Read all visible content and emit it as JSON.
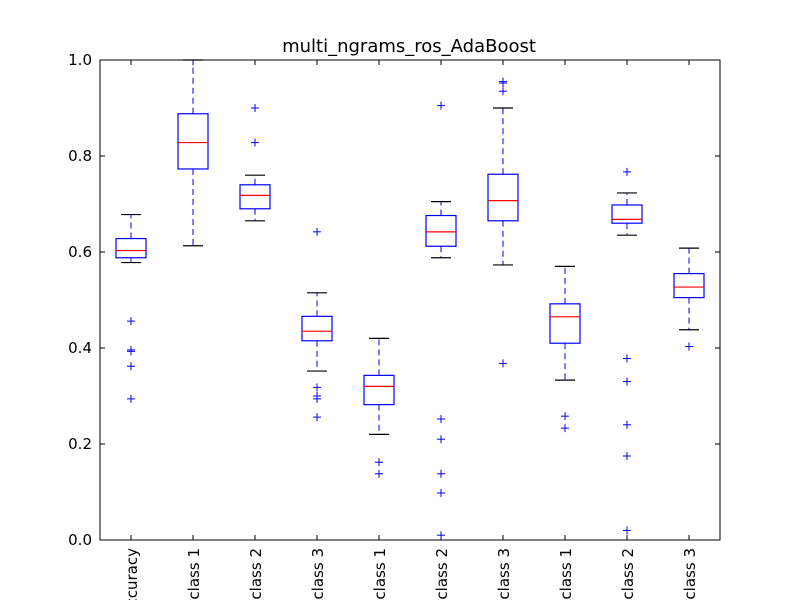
{
  "chart_data": {
    "type": "box",
    "title": "multi_ngrams_ros_AdaBoost",
    "xlabel": "",
    "ylabel": "",
    "ylim": [
      0.0,
      1.0
    ],
    "yticks": [
      0.0,
      0.2,
      0.4,
      0.6,
      0.8,
      1.0
    ],
    "ytick_labels": [
      "0.0",
      "0.2",
      "0.4",
      "0.6",
      "0.8",
      "1.0"
    ],
    "grid": false,
    "categories": [
      "ccuracy",
      "class 1",
      "class 2",
      "class 3",
      "class 1",
      "class 2",
      "class 3",
      "class 1",
      "class 2",
      "class 3"
    ],
    "boxes": [
      {
        "whislo": 0.578,
        "q1": 0.588,
        "med": 0.603,
        "q3": 0.628,
        "whishi": 0.678,
        "fliers": [
          0.456,
          0.396,
          0.393,
          0.362,
          0.294
        ]
      },
      {
        "whislo": 0.613,
        "q1": 0.773,
        "med": 0.828,
        "q3": 0.888,
        "whishi": 1.0,
        "fliers": []
      },
      {
        "whislo": 0.665,
        "q1": 0.69,
        "med": 0.718,
        "q3": 0.74,
        "whishi": 0.76,
        "fliers": [
          0.9,
          0.828
        ]
      },
      {
        "whislo": 0.352,
        "q1": 0.415,
        "med": 0.435,
        "q3": 0.466,
        "whishi": 0.515,
        "fliers": [
          0.642,
          0.318,
          0.3,
          0.294,
          0.256
        ]
      },
      {
        "whislo": 0.22,
        "q1": 0.282,
        "med": 0.32,
        "q3": 0.343,
        "whishi": 0.42,
        "fliers": [
          0.162,
          0.138
        ]
      },
      {
        "whislo": 0.588,
        "q1": 0.612,
        "med": 0.642,
        "q3": 0.676,
        "whishi": 0.705,
        "fliers": [
          0.905,
          0.252,
          0.21,
          0.138,
          0.098,
          0.01
        ]
      },
      {
        "whislo": 0.573,
        "q1": 0.665,
        "med": 0.707,
        "q3": 0.762,
        "whishi": 0.9,
        "fliers": [
          0.955,
          0.952,
          0.935,
          0.368
        ]
      },
      {
        "whislo": 0.333,
        "q1": 0.41,
        "med": 0.465,
        "q3": 0.492,
        "whishi": 0.57,
        "fliers": [
          0.258,
          0.233
        ]
      },
      {
        "whislo": 0.635,
        "q1": 0.66,
        "med": 0.668,
        "q3": 0.698,
        "whishi": 0.723,
        "fliers": [
          0.767,
          0.378,
          0.33,
          0.24,
          0.175,
          0.02
        ]
      },
      {
        "whislo": 0.438,
        "q1": 0.505,
        "med": 0.527,
        "q3": 0.555,
        "whishi": 0.608,
        "fliers": [
          0.403
        ]
      }
    ],
    "colors": {
      "box": "#0000ff",
      "median": "#ff0000",
      "whisker": "#0000ff",
      "cap": "#000000",
      "flier": "#0000ff",
      "axes": "#000000"
    }
  }
}
